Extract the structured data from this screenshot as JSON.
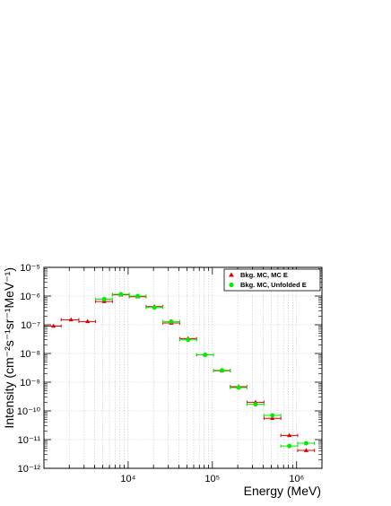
{
  "chart_data": {
    "type": "scatter",
    "xlabel": "Energy (MeV)",
    "ylabel": "Intensity (cm⁻²s⁻¹sr⁻¹MeV⁻¹)",
    "xscale": "log",
    "yscale": "log",
    "xlim": [
      1000,
      2000000
    ],
    "ylim": [
      1e-12,
      1e-05
    ],
    "x_tick_labels": [
      "10⁴",
      "10⁵",
      "10⁶"
    ],
    "x_ticks": [
      10000,
      100000,
      1000000
    ],
    "y_tick_labels": [
      "10⁻¹²",
      "10⁻¹¹",
      "10⁻¹⁰",
      "10⁻⁹",
      "10⁻⁸",
      "10⁻⁷",
      "10⁻⁶",
      "10⁻⁵"
    ],
    "y_ticks": [
      1e-12,
      1e-11,
      1e-10,
      1e-09,
      1e-08,
      1e-07,
      1e-06,
      1e-05
    ],
    "grid": true,
    "legend_position": "top-right",
    "series": [
      {
        "name": "Bkg. MC, MC E",
        "color": "#dd0000",
        "marker": "triangle",
        "points": [
          {
            "x": 1300,
            "xlo": 1000,
            "xhi": 1600,
            "y": 9e-08
          },
          {
            "x": 2100,
            "xlo": 1600,
            "xhi": 2600,
            "y": 1.5e-07
          },
          {
            "x": 3300,
            "xlo": 2600,
            "xhi": 4100,
            "y": 1.3e-07
          },
          {
            "x": 5200,
            "xlo": 4100,
            "xhi": 6500,
            "y": 6.5e-07
          },
          {
            "x": 8200,
            "xlo": 6500,
            "xhi": 10300,
            "y": 1.1e-06
          },
          {
            "x": 13000,
            "xlo": 10300,
            "xhi": 16300,
            "y": 9.5e-07
          },
          {
            "x": 20500,
            "xlo": 16300,
            "xhi": 25800,
            "y": 4.3e-07
          },
          {
            "x": 32500,
            "xlo": 25800,
            "xhi": 41000,
            "y": 1.15e-07
          },
          {
            "x": 51500,
            "xlo": 41000,
            "xhi": 65000,
            "y": 3.3e-08
          },
          {
            "x": 82000,
            "xlo": 65000,
            "xhi": 103000,
            "y": 9e-09
          },
          {
            "x": 130000,
            "xlo": 103000,
            "xhi": 163000,
            "y": 2.5e-09
          },
          {
            "x": 205000,
            "xlo": 163000,
            "xhi": 258000,
            "y": 7e-10
          },
          {
            "x": 325000,
            "xlo": 258000,
            "xhi": 410000,
            "y": 2e-10
          },
          {
            "x": 515000,
            "xlo": 410000,
            "xhi": 650000,
            "y": 5.5e-11
          },
          {
            "x": 820000,
            "xlo": 650000,
            "xhi": 1030000,
            "y": 1.4e-11
          },
          {
            "x": 1300000,
            "xlo": 1030000,
            "xhi": 1630000,
            "y": 4.2e-12
          }
        ]
      },
      {
        "name": "Bkg. MC, Unfolded E",
        "color": "#00ee00",
        "marker": "circle",
        "points": [
          {
            "x": 5200,
            "xlo": 4100,
            "xhi": 6500,
            "y": 7.8e-07
          },
          {
            "x": 8200,
            "xlo": 6500,
            "xhi": 10300,
            "y": 1.15e-06
          },
          {
            "x": 13000,
            "xlo": 10300,
            "xhi": 16300,
            "y": 1e-06
          },
          {
            "x": 20500,
            "xlo": 16300,
            "xhi": 25800,
            "y": 4e-07
          },
          {
            "x": 32500,
            "xlo": 25800,
            "xhi": 41000,
            "y": 1.3e-07
          },
          {
            "x": 51500,
            "xlo": 41000,
            "xhi": 65000,
            "y": 3e-08
          },
          {
            "x": 82000,
            "xlo": 65000,
            "xhi": 103000,
            "y": 9e-09
          },
          {
            "x": 130000,
            "xlo": 103000,
            "xhi": 163000,
            "y": 2.6e-09
          },
          {
            "x": 205000,
            "xlo": 163000,
            "xhi": 258000,
            "y": 6.5e-10
          },
          {
            "x": 325000,
            "xlo": 258000,
            "xhi": 410000,
            "y": 1.7e-10
          },
          {
            "x": 515000,
            "xlo": 410000,
            "xhi": 650000,
            "y": 7e-11
          },
          {
            "x": 820000,
            "xlo": 650000,
            "xhi": 1030000,
            "y": 6e-12
          },
          {
            "x": 1300000,
            "xlo": 1030000,
            "xhi": 1630000,
            "y": 7.5e-12
          }
        ]
      }
    ]
  }
}
